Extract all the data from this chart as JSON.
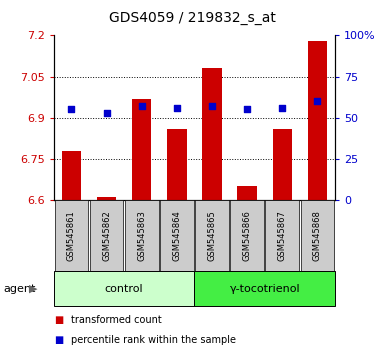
{
  "title": "GDS4059 / 219832_s_at",
  "samples": [
    "GSM545861",
    "GSM545862",
    "GSM545863",
    "GSM545864",
    "GSM545865",
    "GSM545866",
    "GSM545867",
    "GSM545868"
  ],
  "bar_values": [
    6.78,
    6.61,
    6.97,
    6.86,
    7.08,
    6.65,
    6.86,
    7.18
  ],
  "bar_base": 6.6,
  "dot_values": [
    55,
    53,
    57,
    56,
    57,
    55,
    56,
    60
  ],
  "ylim_left": [
    6.6,
    7.2
  ],
  "ylim_right": [
    0,
    100
  ],
  "yticks_left": [
    6.6,
    6.75,
    6.9,
    7.05,
    7.2
  ],
  "yticks_right": [
    0,
    25,
    50,
    75,
    100
  ],
  "ytick_labels_left": [
    "6.6",
    "6.75",
    "6.9",
    "7.05",
    "7.2"
  ],
  "ytick_labels_right": [
    "0",
    "25",
    "50",
    "75",
    "100%"
  ],
  "hlines": [
    6.75,
    6.9,
    7.05
  ],
  "bar_color": "#cc0000",
  "dot_color": "#0000cc",
  "group_labels": [
    "control",
    "γ-tocotrienol"
  ],
  "group_colors": [
    "#ccffcc",
    "#44ee44"
  ],
  "agent_label": "agent",
  "legend_bar_label": "transformed count",
  "legend_dot_label": "percentile rank within the sample",
  "title_fontsize": 10,
  "tick_fontsize": 8,
  "sample_fontsize": 6,
  "group_fontsize": 8,
  "legend_fontsize": 7,
  "bar_width": 0.55,
  "bar_color_hex": "#cc0000",
  "dot_color_hex": "#0000cc",
  "sample_box_color": "#cccccc",
  "plot_bg": "#ffffff",
  "spine_color": "#000000"
}
